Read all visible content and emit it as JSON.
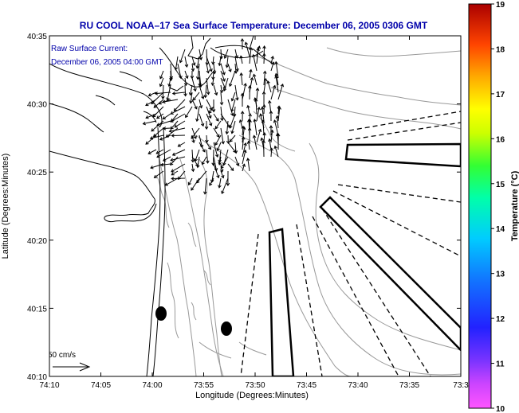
{
  "title": "RU COOL   NOAA–17  Sea Surface Temperature:  December 06, 2005 0306 GMT",
  "overlay": {
    "line1": "Raw Surface Current:",
    "line2": "December 06, 2005 04:00 GMT"
  },
  "axes": {
    "x_label": "Longitude (Degrees:Minutes)",
    "y_label": "Latitude (Degrees:Minutes)",
    "x_ticks": [
      "74:10",
      "74:05",
      "74:00",
      "73:55",
      "73:50",
      "73:45",
      "73:40",
      "73:35",
      "73:3"
    ],
    "y_ticks": [
      "40:35",
      "40:30",
      "40:25",
      "40:20",
      "40:15",
      "40:10"
    ]
  },
  "scale": {
    "label": "50 cm/s"
  },
  "colorbar": {
    "label": "Temperature (°C)",
    "ticks": [
      "19",
      "18",
      "17",
      "16",
      "15",
      "14",
      "13",
      "12",
      "11",
      "10"
    ],
    "min": 10,
    "max": 19
  },
  "colors": {
    "title": "#0000aa",
    "overlay_text": "#0000aa",
    "coast": "#000000",
    "contour": "#999999",
    "frame": "#000000"
  }
}
